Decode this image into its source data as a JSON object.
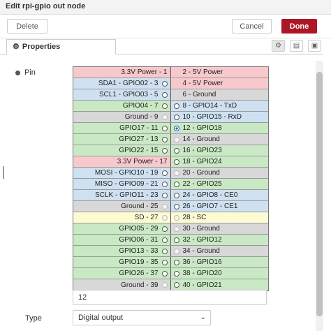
{
  "title": "Edit rpi-gpio out node",
  "buttons": {
    "delete": "Delete",
    "cancel": "Cancel",
    "done": "Done"
  },
  "tabs": [
    {
      "label": "Properties",
      "icon": "gear-icon"
    }
  ],
  "tab_icons": [
    "gear-icon",
    "document-icon",
    "frame-icon"
  ],
  "pin": {
    "label": "Pin",
    "selected": "12",
    "rows": [
      {
        "left": "3.3V Power - 1",
        "lc": "red",
        "lr": "none",
        "right": "2 - 5V Power",
        "rc": "red",
        "rr": "none"
      },
      {
        "left": "SDA1 - GPIO02 - 3",
        "lc": "blue",
        "lr": "on",
        "right": "4 - 5V Power",
        "rc": "red",
        "rr": "none"
      },
      {
        "left": "SCL1 - GPIO03 - 5",
        "lc": "blue",
        "lr": "on",
        "right": "6 - Ground",
        "rc": "gray",
        "rr": "none"
      },
      {
        "left": "GPIO04 - 7",
        "lc": "green",
        "lr": "on",
        "right": "8 - GPIO14 - TxD",
        "rc": "blue",
        "rr": "on"
      },
      {
        "left": "Ground - 9",
        "lc": "gray",
        "lr": "dis",
        "right": "10 - GPIO15 - RxD",
        "rc": "blue",
        "rr": "on"
      },
      {
        "left": "GPIO17 - 11",
        "lc": "green",
        "lr": "on",
        "right": "12 - GPIO18",
        "rc": "green",
        "rr": "sel"
      },
      {
        "left": "GPIO27 - 13",
        "lc": "green",
        "lr": "on",
        "right": "14 - Ground",
        "rc": "gray",
        "rr": "dis"
      },
      {
        "left": "GPIO22 - 15",
        "lc": "green",
        "lr": "on",
        "right": "16 - GPIO23",
        "rc": "green",
        "rr": "on"
      },
      {
        "left": "3.3V Power - 17",
        "lc": "red",
        "lr": "none",
        "right": "18 - GPIO24",
        "rc": "green",
        "rr": "on"
      },
      {
        "left": "MOSI - GPIO10 - 19",
        "lc": "blue",
        "lr": "on",
        "right": "20 - Ground",
        "rc": "gray",
        "rr": "dis"
      },
      {
        "left": "MISO - GPIO09 - 21",
        "lc": "blue",
        "lr": "on",
        "right": "22 - GPIO25",
        "rc": "green",
        "rr": "on"
      },
      {
        "left": "SCLK - GPIO11 - 23",
        "lc": "blue",
        "lr": "on",
        "right": "24 - GPIO8 - CE0",
        "rc": "blue",
        "rr": "on"
      },
      {
        "left": "Ground - 25",
        "lc": "gray",
        "lr": "dis",
        "right": "26 - GPIO7 - CE1",
        "rc": "blue",
        "rr": "on"
      },
      {
        "left": "SD - 27",
        "lc": "yellow",
        "lr": "dis",
        "right": "28 - SC",
        "rc": "yellow",
        "rr": "dis"
      },
      {
        "left": "GPIO05 - 29",
        "lc": "green",
        "lr": "on",
        "right": "30 - Ground",
        "rc": "gray",
        "rr": "dis"
      },
      {
        "left": "GPIO06 - 31",
        "lc": "green",
        "lr": "on",
        "right": "32 - GPIO12",
        "rc": "green",
        "rr": "on"
      },
      {
        "left": "GPIO13 - 33",
        "lc": "green",
        "lr": "on",
        "right": "34 - Ground",
        "rc": "gray",
        "rr": "dis"
      },
      {
        "left": "GPIO19 - 35",
        "lc": "green",
        "lr": "on",
        "right": "36 - GPIO16",
        "rc": "green",
        "rr": "on"
      },
      {
        "left": "GPIO26 - 37",
        "lc": "green",
        "lr": "on",
        "right": "38 - GPIO20",
        "rc": "green",
        "rr": "on"
      },
      {
        "left": "Ground - 39",
        "lc": "gray",
        "lr": "dis",
        "right": "40 - GPIO21",
        "rc": "green",
        "rr": "on"
      }
    ]
  },
  "type": {
    "label": "Type",
    "value": "Digital output"
  },
  "colors": {
    "red": "#f8c9cc",
    "blue": "#cfe1f1",
    "gray": "#d8d8d8",
    "green": "#c9e9c4",
    "yellow": "#fdfbd2",
    "done": "#ad1625"
  }
}
